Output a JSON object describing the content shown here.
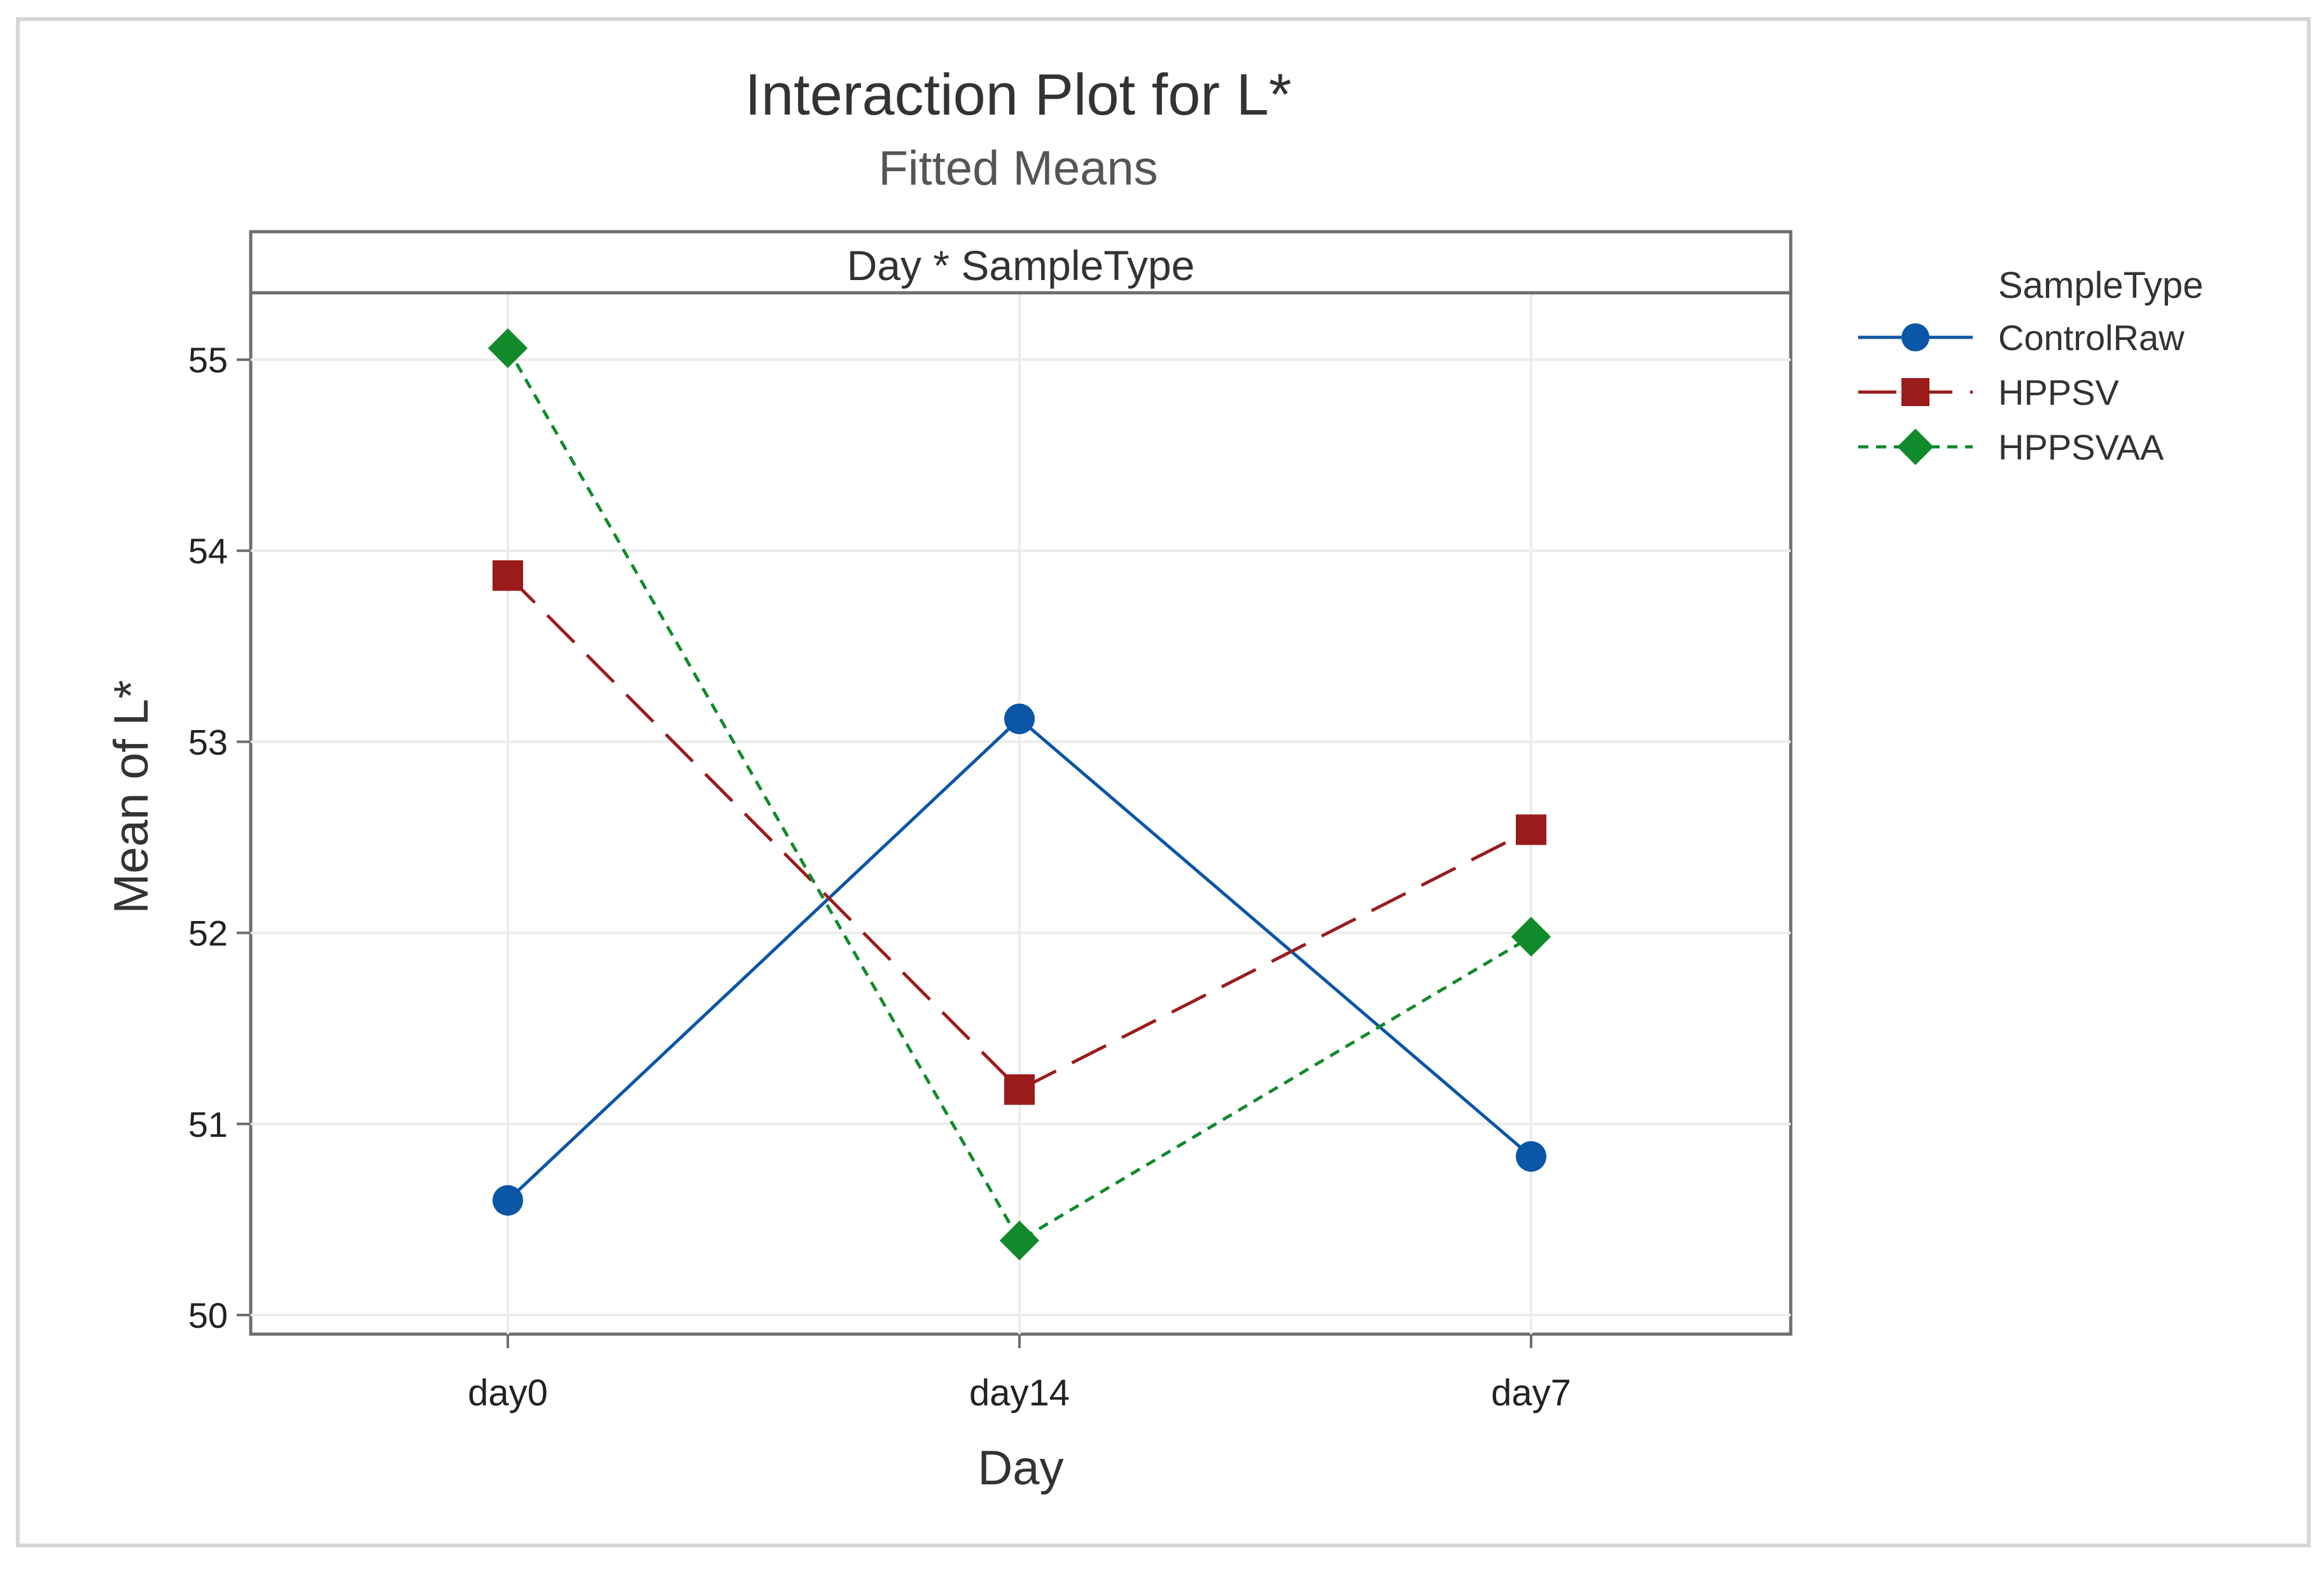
{
  "chart_data": {
    "type": "line",
    "title": "Interaction Plot for L*",
    "subtitle": "Fitted Means",
    "panel_label": "Day * SampleType",
    "xlabel": "Day",
    "ylabel": "Mean of L*",
    "categories": [
      "day0",
      "day14",
      "day7"
    ],
    "ylim": [
      49.9,
      55.35
    ],
    "yticks": [
      50,
      51,
      52,
      53,
      54,
      55
    ],
    "grid": true,
    "legend_title": "SampleType",
    "legend_position": "right",
    "series": [
      {
        "name": "ControlRaw",
        "values": [
          50.6,
          53.12,
          50.83
        ],
        "color": "#0B56A6",
        "marker": "circle",
        "dash": "solid"
      },
      {
        "name": "HPPSV",
        "values": [
          53.87,
          51.18,
          52.54
        ],
        "color": "#9B1B1B",
        "marker": "square",
        "dash": "longdash"
      },
      {
        "name": "HPPSVAA",
        "values": [
          55.06,
          50.39,
          51.98
        ],
        "color": "#118A2C",
        "marker": "diamond",
        "dash": "shortdash"
      }
    ]
  }
}
